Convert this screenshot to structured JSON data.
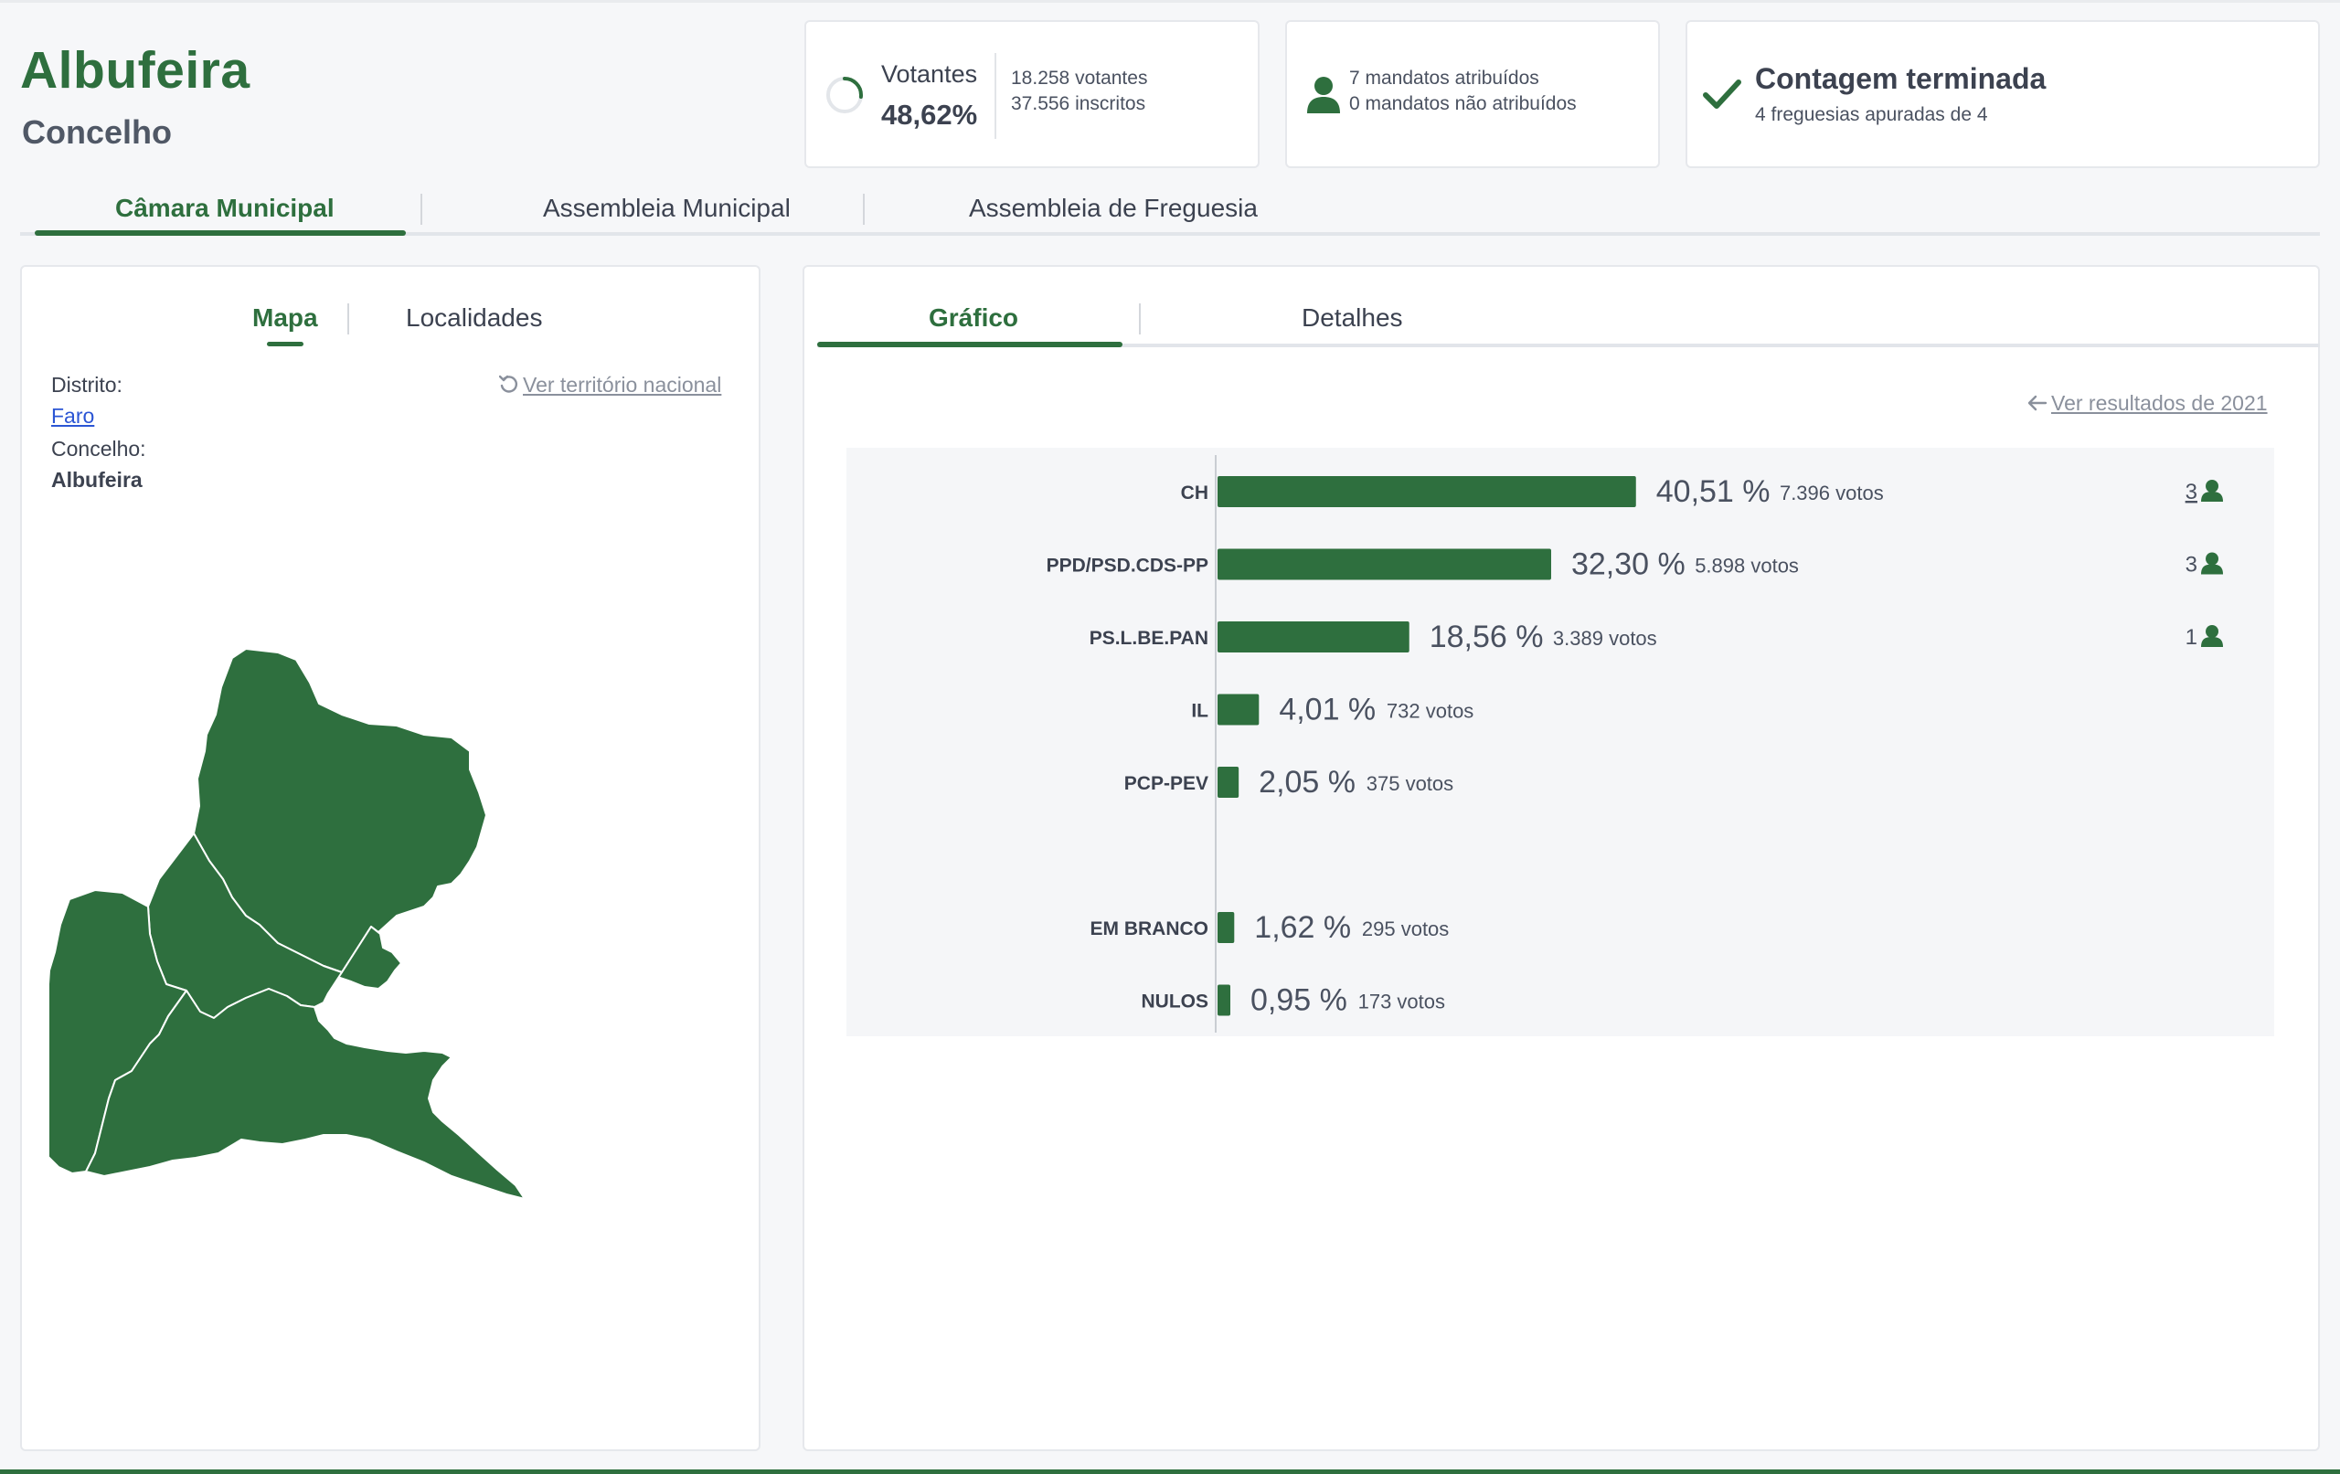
{
  "header": {
    "title": "Albufeira",
    "subtitle": "Concelho"
  },
  "summary": {
    "votantes_label": "Votantes",
    "votantes_pct": "48,62%",
    "votantes_progress": 0.4862,
    "votantes_count": "18.258 votantes",
    "inscritos_count": "37.556 inscritos",
    "mandatos_atribuidos": "7 mandatos atribuídos",
    "mandatos_nao_atribuidos": "0 mandatos não atribuídos",
    "contagem_title": "Contagem terminada",
    "contagem_sub": "4 freguesias apuradas de 4"
  },
  "main_tabs": [
    "Câmara Municipal",
    "Assembleia Municipal",
    "Assembleia de Freguesia"
  ],
  "left_panel": {
    "tabs": [
      "Mapa",
      "Localidades"
    ],
    "distrito_label": "Distrito:",
    "distrito_value": "Faro",
    "concelho_label": "Concelho:",
    "concelho_value": "Albufeira",
    "ver_territorio": "Ver território nacional"
  },
  "right_panel": {
    "tabs": [
      "Gráfico",
      "Detalhes"
    ],
    "ver_resultados": "Ver resultados de 2021"
  },
  "colors": {
    "accent": "#2e6f3e",
    "link": "#2b55d4"
  },
  "chart_data": {
    "type": "bar",
    "orientation": "horizontal",
    "categories": [
      "CH",
      "PPD/PSD.CDS-PP",
      "PS.L.BE.PAN",
      "IL",
      "PCP-PEV",
      "EM BRANCO",
      "NULOS"
    ],
    "values": [
      40.51,
      32.3,
      18.56,
      4.01,
      2.05,
      1.62,
      0.95
    ],
    "pct_labels": [
      "40,51 %",
      "32,30 %",
      "18,56 %",
      "4,01 %",
      "2,05 %",
      "1,62 %",
      "0,95 %"
    ],
    "votes_labels": [
      "7.396 votos",
      "5.898 votos",
      "3.389 votos",
      "732 votos",
      "375 votos",
      "295 votos",
      "173 votos"
    ],
    "mandates": [
      "3",
      "3",
      "1",
      "",
      "",
      "",
      ""
    ],
    "gap_before_index": 5
  }
}
